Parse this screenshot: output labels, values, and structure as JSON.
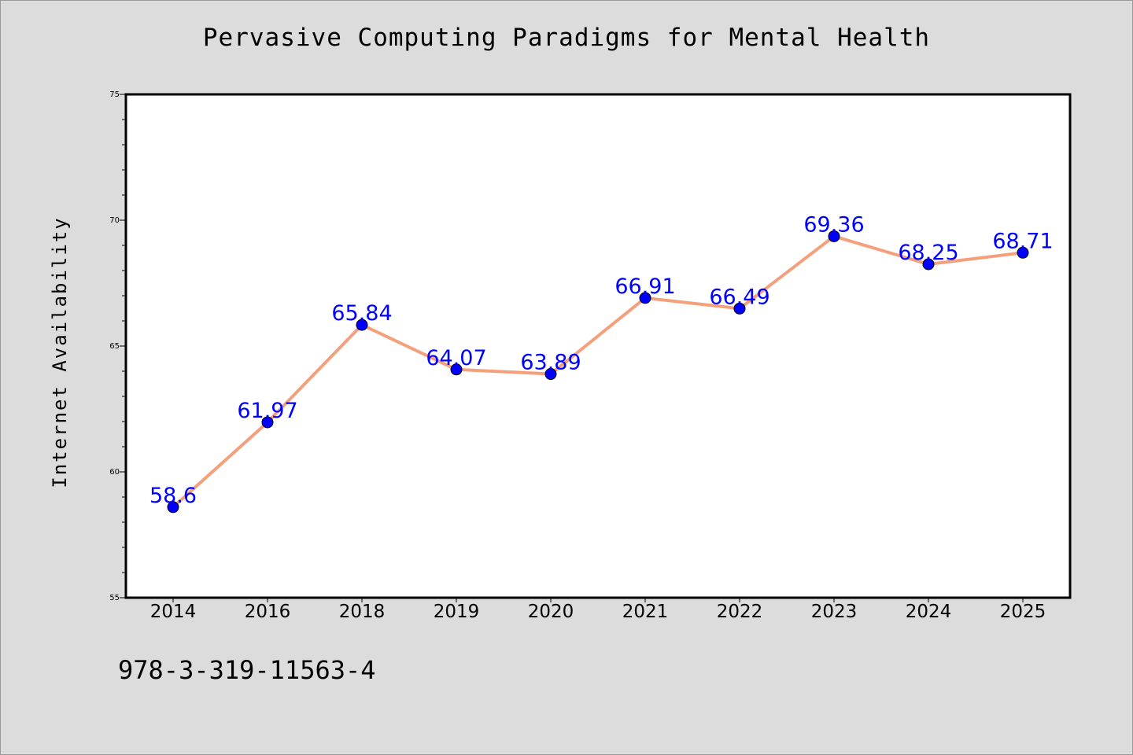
{
  "page": {
    "title": "Pervasive Computing Paradigms for Mental Health",
    "footnote": "978-3-319-11563-4"
  },
  "chart_data": {
    "type": "line",
    "title": "Pervasive Computing Paradigms for Mental Health",
    "xlabel": "",
    "ylabel": "Internet Availability",
    "categories": [
      "2014",
      "2016",
      "2018",
      "2019",
      "2020",
      "2021",
      "2022",
      "2023",
      "2024",
      "2025"
    ],
    "series": [
      {
        "values": [
          58.6,
          61.97,
          65.84,
          64.07,
          63.89,
          66.91,
          66.49,
          69.36,
          68.25,
          68.71
        ],
        "labels": [
          "58.6",
          "61.97",
          "65.84",
          "64.07",
          "63.89",
          "66.91",
          "66.49",
          "69.36",
          "68.25",
          "68.71"
        ]
      }
    ],
    "ylim": [
      55,
      75
    ],
    "yticks": [
      55,
      60,
      65,
      70,
      75
    ],
    "grid": false,
    "legend": "none",
    "colors": {
      "line": "#f4a07c",
      "marker": "#0000ff",
      "data_label": "#0000ff",
      "plot_background": "#ffffff",
      "page_background": "#dcdcdc"
    }
  }
}
